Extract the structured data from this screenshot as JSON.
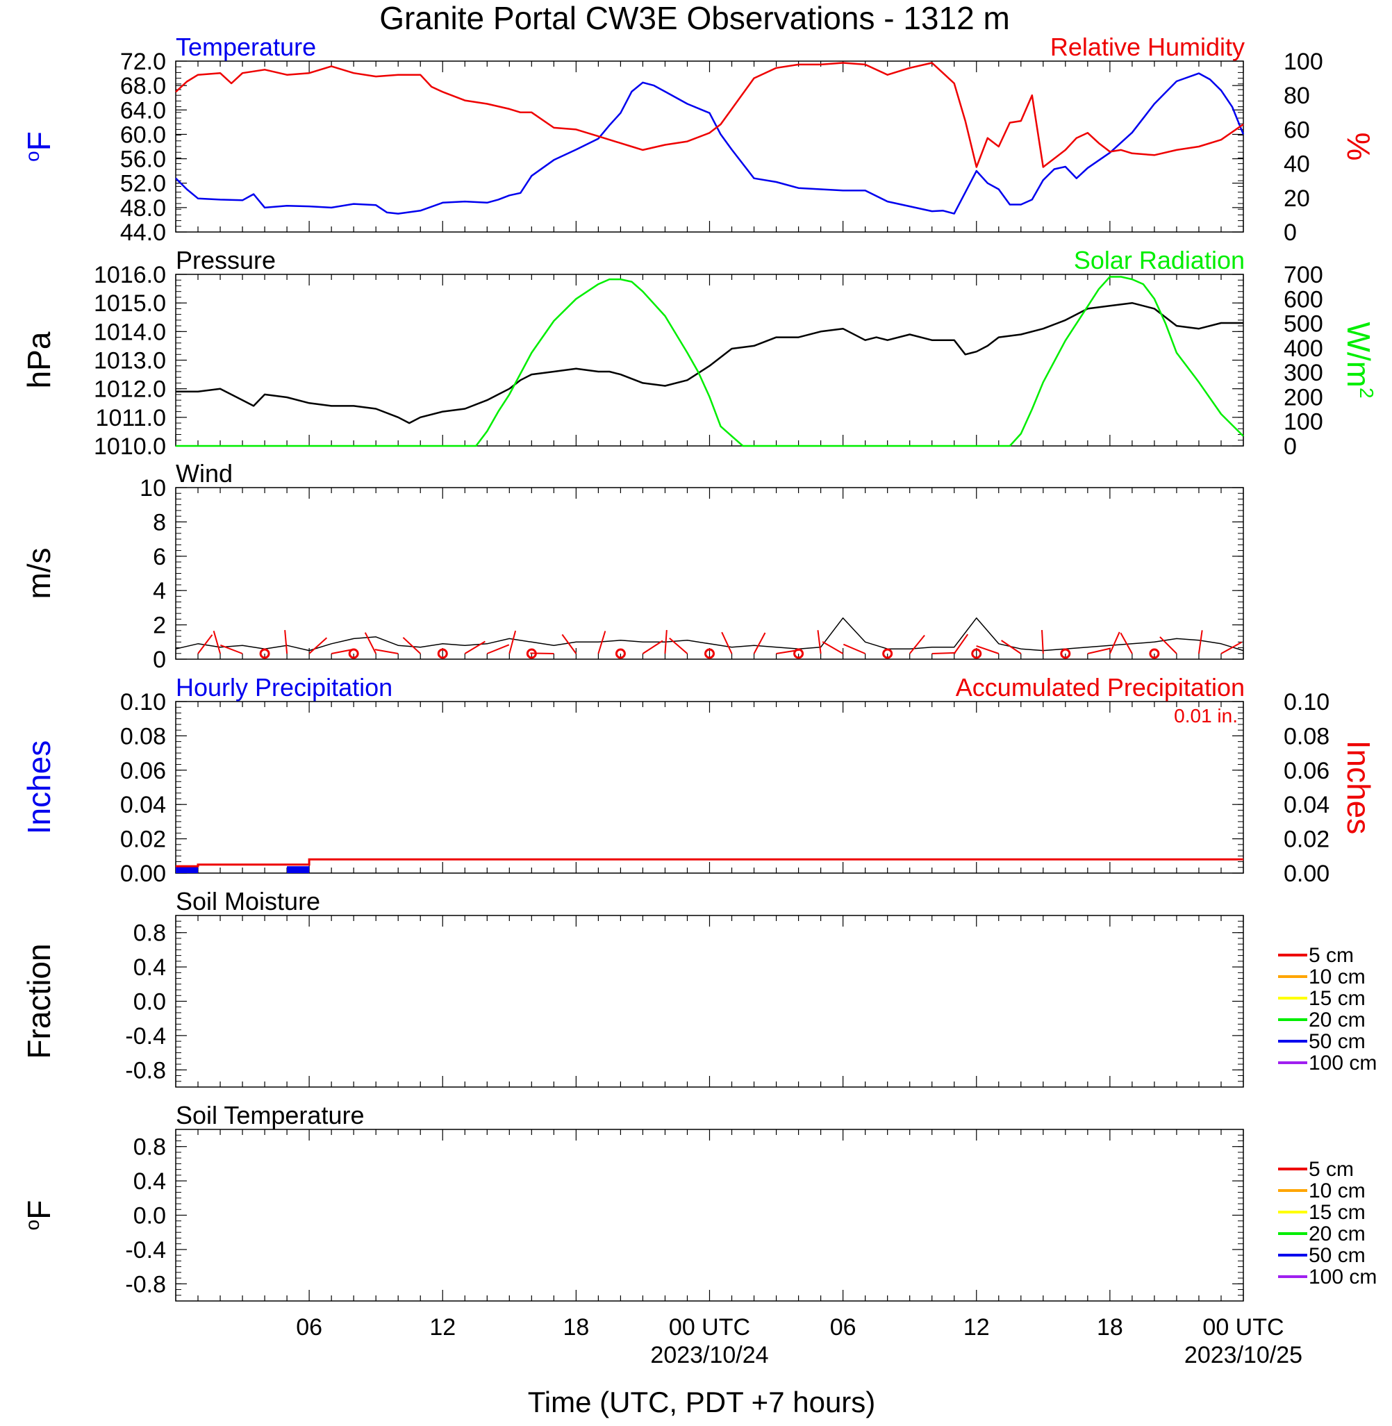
{
  "title": "Granite Portal CW3E Observations - 1312 m",
  "xlabel": "Time (UTC, PDT +7 hours)",
  "x_axis": {
    "hours_shown": 48,
    "tick_labels": [
      {
        "hour": 6,
        "label": "06",
        "sub": ""
      },
      {
        "hour": 12,
        "label": "12",
        "sub": ""
      },
      {
        "hour": 18,
        "label": "18",
        "sub": ""
      },
      {
        "hour": 24,
        "label": "00 UTC",
        "sub": "2023/10/24"
      },
      {
        "hour": 30,
        "label": "06",
        "sub": ""
      },
      {
        "hour": 36,
        "label": "12",
        "sub": ""
      },
      {
        "hour": 42,
        "label": "18",
        "sub": ""
      },
      {
        "hour": 48,
        "label": "00 UTC",
        "sub": "2023/10/25"
      }
    ]
  },
  "colors": {
    "temperature": "#0000ee",
    "humidity": "#ee0000",
    "pressure": "#000000",
    "solar": "#00ee00",
    "wind": "#000000",
    "barb": "#ee0000",
    "hourly_precip": "#0000ee",
    "accum_precip": "#ee0000",
    "soil_levels": [
      "#ee0000",
      "#ffa500",
      "#ffff00",
      "#00ee00",
      "#0000ee",
      "#a020f0"
    ]
  },
  "chart_data": [
    {
      "type": "line",
      "panel": "temperature-humidity",
      "left_title": "Temperature",
      "right_title": "Relative Humidity",
      "ylabel_left": "oF",
      "ylabel_right": "%",
      "ylim_left": [
        44,
        72
      ],
      "ylim_right": [
        0,
        100
      ],
      "yticks_left": [
        "72.0",
        "68.0",
        "64.0",
        "60.0",
        "56.0",
        "52.0",
        "48.0",
        "44.0"
      ],
      "yticks_right": [
        "100",
        "80",
        "60",
        "40",
        "20",
        "0"
      ],
      "series": [
        {
          "name": "Temperature",
          "axis": "left",
          "x": [
            0,
            0.5,
            1,
            2,
            3,
            3.5,
            4,
            5,
            6,
            7,
            8,
            9,
            9.5,
            10,
            11,
            12,
            13,
            14,
            14.5,
            15,
            15.5,
            16,
            17,
            18,
            19,
            19.5,
            20,
            20.5,
            21,
            21.5,
            22,
            23,
            24,
            24.5,
            25,
            26,
            27,
            28,
            29,
            30,
            31,
            32,
            33,
            34,
            34.5,
            35,
            35.5,
            36,
            36.5,
            37,
            37.5,
            38,
            38.5,
            39,
            39.5,
            40,
            40.5,
            41,
            42,
            43,
            44,
            45,
            46,
            46.5,
            47,
            47.5,
            48
          ],
          "y": [
            52.8,
            51,
            49.5,
            49.3,
            49.2,
            50.2,
            48,
            48.3,
            48.2,
            48,
            48.6,
            48.4,
            47.2,
            47,
            47.5,
            48.8,
            49,
            48.8,
            49.3,
            50,
            50.4,
            53.2,
            55.8,
            57.5,
            59.3,
            61.5,
            63.5,
            67,
            68.5,
            68,
            67,
            65,
            63.5,
            60,
            57.5,
            52.8,
            52.2,
            51.2,
            51,
            50.8,
            50.8,
            49,
            48.2,
            47.4,
            47.5,
            47,
            50.5,
            54,
            52,
            51,
            48.5,
            48.5,
            49.3,
            52.5,
            54.3,
            54.7,
            52.8,
            54.5,
            57,
            60.3,
            65,
            68.7,
            70,
            69,
            67.2,
            64.5,
            60
          ]
        },
        {
          "name": "Relative Humidity",
          "axis": "right",
          "x": [
            0,
            0.5,
            1,
            2,
            2.5,
            3,
            4,
            5,
            6,
            7,
            8,
            9,
            10,
            11,
            11.5,
            12,
            13,
            14,
            15,
            15.5,
            16,
            17,
            18,
            19,
            20,
            20.5,
            21,
            22,
            23,
            24,
            24.5,
            25,
            26,
            27,
            28,
            29,
            30,
            31,
            32,
            33,
            34,
            34.5,
            35,
            35.5,
            36,
            36.5,
            37,
            37.5,
            38,
            38.5,
            39,
            40,
            40.5,
            41,
            41.5,
            42,
            42.5,
            43,
            44,
            45,
            46,
            47,
            48
          ],
          "y": [
            82,
            88,
            92,
            93,
            87,
            93,
            95,
            92,
            93,
            97,
            93,
            91,
            92,
            92,
            85,
            82,
            77,
            75,
            72,
            70,
            70,
            61,
            60,
            56,
            52,
            50,
            48,
            51,
            53,
            58,
            63,
            72,
            90,
            96,
            98,
            98,
            99,
            98,
            92,
            96,
            99,
            93,
            87,
            65,
            38,
            55,
            50,
            64,
            65,
            80,
            38,
            48,
            55,
            58,
            52,
            47,
            48,
            46,
            45,
            48,
            50,
            54,
            63
          ]
        }
      ]
    },
    {
      "type": "line",
      "panel": "pressure-solar",
      "left_title": "Pressure",
      "right_title": "Solar Radiation",
      "ylabel_left": "hPa",
      "ylabel_right": "W/m2",
      "ylim_left": [
        1010,
        1016
      ],
      "ylim_right": [
        0,
        700
      ],
      "yticks_left": [
        "1016.0",
        "1015.0",
        "1014.0",
        "1013.0",
        "1012.0",
        "1011.0",
        "1010.0"
      ],
      "yticks_right": [
        "700",
        "600",
        "500",
        "400",
        "300",
        "200",
        "100",
        "0"
      ],
      "series": [
        {
          "name": "Pressure",
          "axis": "left",
          "x": [
            0,
            1,
            2,
            3,
            3.5,
            4,
            5,
            6,
            7,
            8,
            9,
            10,
            10.5,
            11,
            12,
            13,
            14,
            14.5,
            15,
            15.5,
            16,
            17,
            18,
            19,
            19.5,
            20,
            21,
            22,
            23,
            24,
            25,
            26,
            27,
            28,
            29,
            30,
            31,
            31.5,
            32,
            33,
            34,
            35,
            35.5,
            36,
            36.5,
            37,
            38,
            39,
            40,
            41,
            42,
            43,
            44,
            45,
            46,
            47,
            48
          ],
          "y": [
            1011.9,
            1011.9,
            1012.0,
            1011.6,
            1011.4,
            1011.8,
            1011.7,
            1011.5,
            1011.4,
            1011.4,
            1011.3,
            1011.0,
            1010.8,
            1011.0,
            1011.2,
            1011.3,
            1011.6,
            1011.8,
            1012.0,
            1012.3,
            1012.5,
            1012.6,
            1012.7,
            1012.6,
            1012.6,
            1012.5,
            1012.2,
            1012.1,
            1012.3,
            1012.8,
            1013.4,
            1013.5,
            1013.8,
            1013.8,
            1014.0,
            1014.1,
            1013.7,
            1013.8,
            1013.7,
            1013.9,
            1013.7,
            1013.7,
            1013.2,
            1013.3,
            1013.5,
            1013.8,
            1013.9,
            1014.1,
            1014.4,
            1014.8,
            1014.9,
            1015.0,
            1014.8,
            1014.2,
            1014.1,
            1014.3,
            1014.3
          ]
        },
        {
          "name": "Solar Radiation",
          "axis": "right",
          "x": [
            0,
            13.5,
            14,
            14.5,
            15,
            16,
            17,
            18,
            19,
            19.5,
            20,
            20.5,
            21,
            22,
            23,
            23.5,
            24,
            24.5,
            25,
            25.5,
            37.5,
            38,
            38.5,
            39,
            40,
            41,
            41.5,
            42,
            42.5,
            43,
            43.5,
            44,
            44.5,
            45,
            46,
            47,
            48
          ],
          "y": [
            0,
            0,
            60,
            140,
            210,
            380,
            510,
            600,
            660,
            680,
            680,
            670,
            630,
            530,
            380,
            300,
            200,
            80,
            40,
            0,
            0,
            50,
            150,
            260,
            430,
            570,
            640,
            690,
            690,
            680,
            660,
            600,
            500,
            380,
            260,
            130,
            40
          ]
        }
      ]
    },
    {
      "type": "line",
      "panel": "wind",
      "left_title": "Wind",
      "ylabel_left": "m/s",
      "ylim_left": [
        0,
        10
      ],
      "yticks_left": [
        "10",
        "8",
        "6",
        "4",
        "2",
        "0"
      ],
      "series": [
        {
          "name": "",
          "axis": "left",
          "x": [
            0,
            1,
            2,
            3,
            4,
            5,
            6,
            7,
            8,
            9,
            10,
            11,
            12,
            13,
            14,
            15,
            16,
            17,
            18,
            19,
            20,
            21,
            22,
            23,
            24,
            25,
            26,
            27,
            28,
            29,
            30,
            31,
            32,
            33,
            34,
            35,
            36,
            37,
            38,
            39,
            40,
            41,
            42,
            43,
            44,
            45,
            46,
            47,
            48
          ],
          "y": [
            0.6,
            0.9,
            0.7,
            0.8,
            0.6,
            0.8,
            0.5,
            0.9,
            1.2,
            1.3,
            0.8,
            0.7,
            0.9,
            0.8,
            0.9,
            1.2,
            1.0,
            0.8,
            1.0,
            1.0,
            1.1,
            1.0,
            1.0,
            1.1,
            0.9,
            0.7,
            0.8,
            0.7,
            0.6,
            0.7,
            2.4,
            1.0,
            0.6,
            0.6,
            0.7,
            0.7,
            2.4,
            0.9,
            0.6,
            0.5,
            0.6,
            0.7,
            0.8,
            0.9,
            1.0,
            1.2,
            1.1,
            0.9,
            0.5
          ]
        }
      ]
    },
    {
      "type": "bar",
      "panel": "precipitation",
      "left_title": "Hourly Precipitation",
      "right_title": "Accumulated Precipitation",
      "note": "0.01 in.",
      "ylabel_left": "Inches",
      "ylabel_right": "Inches",
      "ylim_left": [
        0,
        0.1
      ],
      "ylim_right": [
        0,
        0.1
      ],
      "yticks_left": [
        "0.10",
        "0.08",
        "0.06",
        "0.04",
        "0.02",
        "0.00"
      ],
      "yticks_right": [
        "0.10",
        "0.08",
        "0.06",
        "0.04",
        "0.02",
        "0.00"
      ],
      "hourly_bars": [
        {
          "start": 0,
          "end": 1,
          "value": 0.004
        },
        {
          "start": 5,
          "end": 6,
          "value": 0.004
        }
      ],
      "accumulated": {
        "x": [
          0,
          1,
          1,
          6,
          6,
          48
        ],
        "y": [
          0.004,
          0.004,
          0.005,
          0.005,
          0.008,
          0.008
        ]
      }
    },
    {
      "type": "line",
      "panel": "soil-moisture",
      "left_title": "Soil Moisture",
      "ylabel_left": "Fraction",
      "ylim_left": [
        -1,
        1
      ],
      "yticks_left": [
        "0.8",
        "0.4",
        "0.0",
        "-0.4",
        "-0.8"
      ],
      "legend": [
        "5 cm",
        "10 cm",
        "15 cm",
        "20 cm",
        "50 cm",
        "100 cm"
      ],
      "series": []
    },
    {
      "type": "line",
      "panel": "soil-temperature",
      "left_title": "Soil Temperature",
      "ylabel_left": "oF",
      "ylim_left": [
        -1,
        1
      ],
      "yticks_left": [
        "0.8",
        "0.4",
        "0.0",
        "-0.4",
        "-0.8"
      ],
      "legend": [
        "5 cm",
        "10 cm",
        "15 cm",
        "20 cm",
        "50 cm",
        "100 cm"
      ],
      "series": []
    }
  ]
}
